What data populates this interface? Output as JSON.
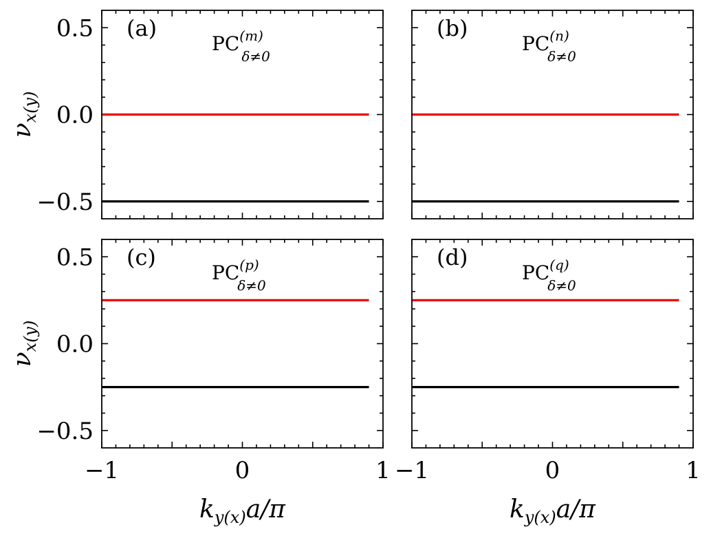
{
  "chart_data": [
    {
      "type": "line",
      "panel_label": "(a)",
      "annotation": {
        "main": "PC",
        "superscript": "(m)",
        "subscript": "δ≠0"
      },
      "x": [
        -1,
        0.9
      ],
      "series": [
        {
          "values": [
            0.0,
            0.0
          ],
          "color": "#ee0000"
        },
        {
          "values": [
            -0.5,
            -0.5
          ],
          "color": "#000000"
        }
      ],
      "xlim": [
        -1,
        1
      ],
      "ylim": [
        -0.6,
        0.6
      ],
      "xticks": [
        -1,
        0,
        1
      ],
      "yticks": [
        0.5,
        0.0,
        -0.5
      ],
      "ytick_labels": [
        "0.5",
        "0.0",
        "−0.5"
      ],
      "ylabel": {
        "main": "ν",
        "sub": "x(y)"
      },
      "grid": false
    },
    {
      "type": "line",
      "panel_label": "(b)",
      "annotation": {
        "main": "PC",
        "superscript": "(n)",
        "subscript": "δ≠0"
      },
      "x": [
        -1,
        0.9
      ],
      "series": [
        {
          "values": [
            0.0,
            0.0
          ],
          "color": "#ee0000"
        },
        {
          "values": [
            -0.5,
            -0.5
          ],
          "color": "#000000"
        }
      ],
      "xlim": [
        -1,
        1
      ],
      "ylim": [
        -0.6,
        0.6
      ],
      "xticks": [
        -1,
        0,
        1
      ],
      "yticks": [
        0.5,
        0.0,
        -0.5
      ],
      "grid": false
    },
    {
      "type": "line",
      "panel_label": "(c)",
      "annotation": {
        "main": "PC",
        "superscript": "(p)",
        "subscript": "δ≠0"
      },
      "x": [
        -1,
        0.9
      ],
      "series": [
        {
          "values": [
            0.25,
            0.25
          ],
          "color": "#ee0000"
        },
        {
          "values": [
            -0.25,
            -0.25
          ],
          "color": "#000000"
        }
      ],
      "xlim": [
        -1,
        1
      ],
      "ylim": [
        -0.6,
        0.6
      ],
      "xticks": [
        -1,
        0,
        1
      ],
      "xtick_labels": [
        "−1",
        "0",
        "1"
      ],
      "yticks": [
        0.5,
        0.0,
        -0.5
      ],
      "ytick_labels": [
        "0.5",
        "0.0",
        "−0.5"
      ],
      "ylabel": {
        "main": "ν",
        "sub": "x(y)"
      },
      "xlabel": {
        "main": "k",
        "sub": "y(x)",
        "rest": "a/π"
      },
      "grid": false
    },
    {
      "type": "line",
      "panel_label": "(d)",
      "annotation": {
        "main": "PC",
        "superscript": "(q)",
        "subscript": "δ≠0"
      },
      "x": [
        -1,
        0.9
      ],
      "series": [
        {
          "values": [
            0.25,
            0.25
          ],
          "color": "#ee0000"
        },
        {
          "values": [
            -0.25,
            -0.25
          ],
          "color": "#000000"
        }
      ],
      "xlim": [
        -1,
        1
      ],
      "ylim": [
        -0.6,
        0.6
      ],
      "xticks": [
        -1,
        0,
        1
      ],
      "xtick_labels": [
        "−1",
        "0",
        "1"
      ],
      "yticks": [
        0.5,
        0.0,
        -0.5
      ],
      "xlabel": {
        "main": "k",
        "sub": "y(x)",
        "rest": "a/π"
      },
      "grid": false
    }
  ]
}
